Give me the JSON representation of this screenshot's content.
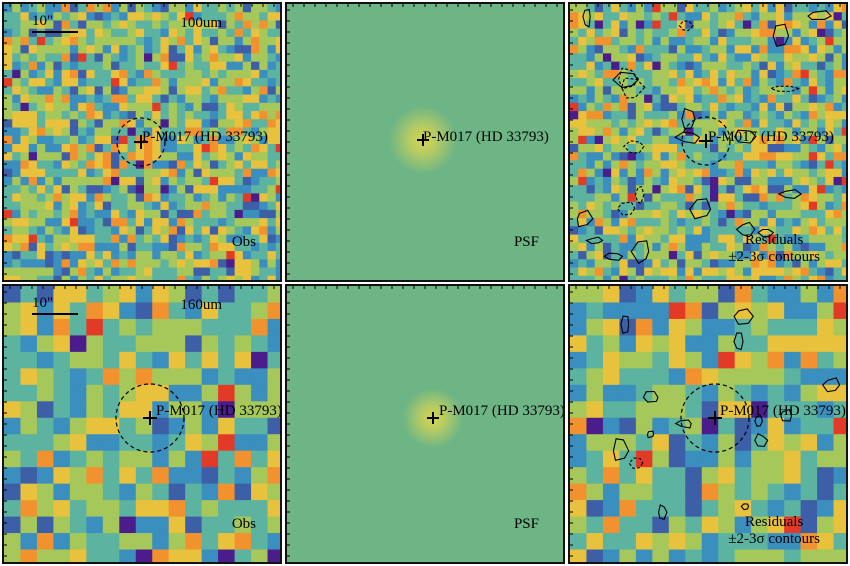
{
  "scale_label": "10\"",
  "source_name": "P-M017 (HD 33793)",
  "rows": [
    {
      "band": "100um",
      "obs_label": "Obs",
      "psf_label": "PSF",
      "res_label_1": "Residuals",
      "res_label_2": "±2-3σ contours"
    },
    {
      "band": "160um",
      "obs_label": "Obs",
      "psf_label": "PSF",
      "res_label_1": "Residuals",
      "res_label_2": "±2-3σ contours"
    }
  ],
  "colors": {
    "psf_background": "#6db585",
    "psf_core": "#d8d54a",
    "cmap": [
      "#4a1c8c",
      "#3d5fa8",
      "#3b8fbf",
      "#5cb3a0",
      "#a6c85a",
      "#e8c13d",
      "#f2922f",
      "#e23a26"
    ]
  }
}
